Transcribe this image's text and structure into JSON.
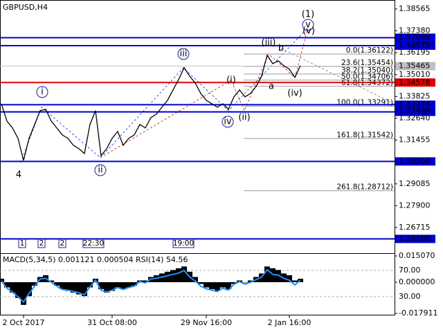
{
  "chart_data": [
    {
      "type": "line",
      "title": "GBPUSD,H4",
      "color": "#000000",
      "categories": [
        null,
        null,
        null,
        null,
        "2 Oct 2017",
        null,
        null,
        null,
        null,
        null,
        null,
        null,
        null,
        null,
        null,
        null,
        null,
        null,
        null,
        null,
        "31 Oct 08:00",
        null,
        null,
        null,
        null,
        null,
        null,
        null,
        null,
        null,
        null,
        null,
        null,
        null,
        null,
        null,
        null,
        "29 Nov 16:00",
        null,
        null,
        null,
        null,
        null,
        null,
        null,
        null,
        null,
        null,
        null,
        null,
        null,
        null,
        "2 Jan 16:00",
        null,
        null
      ],
      "values": [
        1.33428,
        1.3249,
        1.32115,
        1.31553,
        1.30353,
        1.31553,
        1.32303,
        1.33053,
        1.33128,
        1.3249,
        1.32115,
        1.3174,
        1.31553,
        1.31178,
        1.3099,
        1.30728,
        1.32303,
        1.33053,
        1.30615,
        1.3099,
        1.31553,
        1.31928,
        1.31178,
        1.31553,
        1.3174,
        1.32303,
        1.32115,
        1.32678,
        1.32865,
        1.3324,
        1.33615,
        1.34178,
        1.3474,
        1.35378,
        1.34928,
        1.34553,
        1.3399,
        1.33615,
        1.33428,
        1.3324,
        1.33428,
        1.33128,
        1.33803,
        1.34178,
        1.33803,
        1.3399,
        1.34365,
        1.34928,
        1.36053,
        1.35603,
        1.35753,
        1.3549,
        1.35303,
        1.34853,
        1.3549
      ],
      "ylim": [
        1.25365,
        1.39052
      ],
      "yticks": [
        1.38565,
        {
          "value": 1.3738,
          "label": "1.37380"
        },
        1.36195,
        {
          "value": 1.3501,
          "label": "1.35010"
        },
        1.33825,
        {
          "value": 1.3264,
          "label": "1.32640"
        },
        1.31455,
        1.29085,
        {
          "value": 1.279,
          "label": "1.27900"
        },
        1.26715
      ],
      "levels": [
        {
          "value": 1.37008,
          "label": "1.37008",
          "color": "#0000cc"
        },
        {
          "value": 1.36575,
          "label": "1.36575",
          "color": "#0000cc"
        },
        {
          "value": 1.34578,
          "label": "1.34578",
          "color": "#e00000"
        },
        {
          "value": 1.33374,
          "label": "1.33374",
          "color": "#0000cc"
        },
        {
          "value": 1.32988,
          "label": "1.32988",
          "color": "#0000cc"
        },
        {
          "value": 1.303,
          "label": "1.30300",
          "color": "#0000cc"
        },
        {
          "value": 1.261,
          "label": "1.26100",
          "color": "#0000cc"
        }
      ],
      "current_price": {
        "value": 1.35465,
        "label": "1.35465",
        "color": "#c0c0c0"
      },
      "fib_levels": [
        {
          "value": 1.36122,
          "label": "0.0(1.36122)"
        },
        {
          "value": 1.35454,
          "label": "23.6(1.35454)"
        },
        {
          "value": 1.3504,
          "label": "38.2(1.35040)"
        },
        {
          "value": 1.34706,
          "label": "50.0(1.34706)"
        },
        {
          "value": 1.34372,
          "label": "61.8(1.34372)"
        },
        {
          "value": 1.33291,
          "label": "100.0(1.33291)"
        },
        {
          "value": 1.31542,
          "label": "161.8(1.31542)"
        },
        {
          "value": 1.28712,
          "label": "261.8(1.28712)"
        }
      ],
      "annotations": [
        {
          "text": "(1)",
          "color": "#2e8b2e",
          "circled": false
        },
        {
          "text": "v",
          "color": "#1a1aa0",
          "circled": true
        },
        {
          "text": "(v)",
          "color": "#d00000",
          "circled": false
        },
        {
          "text": "iii",
          "color": "#1a1aa0",
          "circled": true
        },
        {
          "text": "(iii)",
          "color": "#d00000",
          "circled": false
        },
        {
          "text": "b",
          "color": "#5a5aa0",
          "circled": false
        },
        {
          "text": "a",
          "color": "#707070",
          "circled": false
        },
        {
          "text": "(i)",
          "color": "#d00000",
          "circled": false
        },
        {
          "text": "(ii)",
          "color": "#d00000",
          "circled": false
        },
        {
          "text": "(iv)",
          "color": "#d00000",
          "circled": false
        },
        {
          "text": "iv",
          "color": "#1a1aa0",
          "circled": true
        },
        {
          "text": "i",
          "color": "#1a1aa0",
          "circled": true
        },
        {
          "text": "ii",
          "color": "#1a1aa0",
          "circled": true
        },
        {
          "text": "4",
          "color": "#a02020",
          "circled": false
        }
      ],
      "separators": [
        "1",
        "2",
        "2",
        "22:30",
        "19:00"
      ]
    },
    {
      "type": "bar",
      "title": "MACD(5,34,5) 0.001121 0.000504 RSI(14) 54.56",
      "color": "#000000",
      "values": [
        0.002,
        -0.003,
        -0.006,
        -0.009,
        -0.013,
        -0.008,
        -0.002,
        0.003,
        0.004,
        0.001,
        -0.002,
        -0.004,
        -0.005,
        -0.006,
        -0.007,
        -0.008,
        -0.003,
        0.002,
        -0.004,
        -0.006,
        -0.005,
        -0.003,
        -0.004,
        -0.003,
        -0.002,
        0.001,
        0.001,
        0.003,
        0.004,
        0.005,
        0.006,
        0.007,
        0.008,
        0.009,
        0.006,
        0.003,
        -0.001,
        -0.003,
        -0.004,
        -0.005,
        -0.003,
        -0.004,
        -0.001,
        0.001,
        0,
        0.001,
        0.003,
        0.005,
        0.009,
        0.008,
        0.007,
        0.005,
        0.004,
        0.001,
        0.002
      ],
      "ylim": [
        -0.01905,
        0.01666
      ],
      "yticks": [
        {
          "value": 0.01507,
          "label": "0.015070"
        },
        {
          "value": 0,
          "label": "0.000000"
        },
        {
          "value": -0.017911,
          "label": "-0.017911"
        }
      ],
      "y2lim": [
        1.6,
        96.3
      ],
      "y2ticks": [
        {
          "value": 70,
          "label": "70.00"
        },
        {
          "value": 30,
          "label": "30.00"
        }
      ],
      "series": [
        {
          "color": "#1e90ff",
          "axis": "y2",
          "values": [
            54,
            43,
            37,
            30,
            22,
            35,
            46,
            57,
            58,
            52,
            46,
            41,
            40,
            38,
            36,
            33,
            45,
            55,
            40,
            37,
            40,
            44,
            41,
            44,
            46,
            53,
            51,
            57,
            58,
            60,
            62,
            64,
            66,
            70,
            60,
            54,
            46,
            42,
            40,
            38,
            43,
            40,
            49,
            53,
            49,
            52,
            56,
            60,
            71,
            64,
            63,
            58,
            55,
            48,
            55
          ]
        }
      ]
    }
  ]
}
